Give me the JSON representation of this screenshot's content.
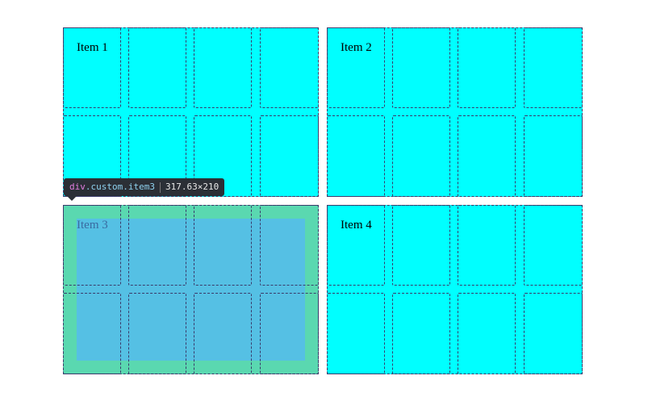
{
  "items": [
    {
      "label": "Item 1",
      "highlighted": false
    },
    {
      "label": "Item 2",
      "highlighted": false
    },
    {
      "label": "Item 3",
      "highlighted": true
    },
    {
      "label": "Item 4",
      "highlighted": false
    }
  ],
  "tooltip": {
    "tag": "div",
    "classes": ".custom.item3",
    "dimensions": "317.63×210"
  },
  "colors": {
    "item_background": "#00ffff",
    "padding_highlight": "#5ad8b0",
    "content_highlight": "#55c0e4",
    "tooltip_background": "#2b2f36"
  }
}
